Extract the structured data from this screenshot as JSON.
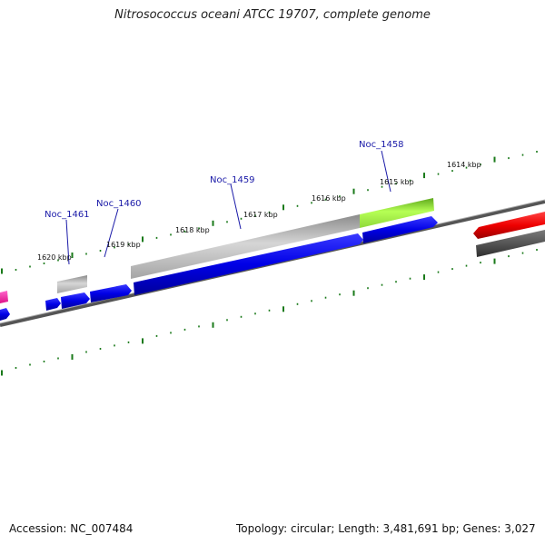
{
  "title": "Nitrosococcus oceani ATCC 19707, complete genome",
  "footer": {
    "accession": "Accession: NC_007484",
    "summary": "Topology: circular; Length: 3,481,691 bp; Genes: 3,027"
  },
  "scale_labels": [
    "1614 kbp",
    "1615 kbp",
    "1616 kbp",
    "1617 kbp",
    "1618 kbp",
    "1619 kbp",
    "1620 kbp"
  ],
  "gene_labels": [
    "Noc_1458",
    "Noc_1459",
    "Noc_1460",
    "Noc_1461"
  ],
  "colors": {
    "forward_gene": "#0000ee",
    "gray_gene": "#b9b9b9",
    "green_gene": "#a6f23c",
    "red_gene": "#ee0000",
    "pink_gene": "#ff22aa",
    "dark_gene": "#555555",
    "tick": "#1a7a1a",
    "label_line": "#1a1aa8"
  }
}
